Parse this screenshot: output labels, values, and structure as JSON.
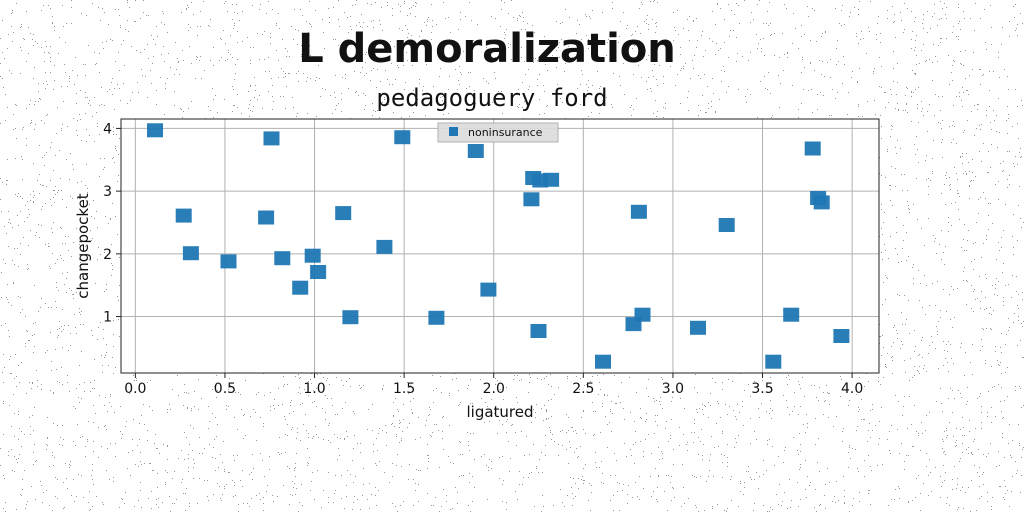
{
  "chart_data": {
    "type": "scatter",
    "title": "L demoralization",
    "subtitle": "pedagoguery ford",
    "xlabel": "ligatured",
    "ylabel": "changepocket",
    "xlim": [
      -0.08,
      4.15
    ],
    "ylim": [
      0.1,
      4.15
    ],
    "xticks": [
      0.0,
      0.5,
      1.0,
      1.5,
      2.0,
      2.5,
      3.0,
      3.5,
      4.0
    ],
    "xtick_labels": [
      "0.0",
      "0.5",
      "1.0",
      "1.5",
      "2.0",
      "2.5",
      "3.0",
      "3.5",
      "4.0"
    ],
    "yticks": [
      1,
      2,
      3,
      4
    ],
    "ytick_labels": [
      "1",
      "2",
      "3",
      "4"
    ],
    "grid": true,
    "legend_position": "top-center",
    "series": [
      {
        "name": "noninsurance",
        "color": "#1f77b4",
        "marker": "square",
        "points": [
          {
            "x": 0.11,
            "y": 3.97
          },
          {
            "x": 0.27,
            "y": 2.61
          },
          {
            "x": 0.31,
            "y": 2.01
          },
          {
            "x": 0.52,
            "y": 1.88
          },
          {
            "x": 0.73,
            "y": 2.58
          },
          {
            "x": 0.76,
            "y": 3.84
          },
          {
            "x": 0.82,
            "y": 1.93
          },
          {
            "x": 0.92,
            "y": 1.46
          },
          {
            "x": 0.99,
            "y": 1.97
          },
          {
            "x": 1.02,
            "y": 1.71
          },
          {
            "x": 1.16,
            "y": 2.65
          },
          {
            "x": 1.2,
            "y": 0.99
          },
          {
            "x": 1.39,
            "y": 2.11
          },
          {
            "x": 1.49,
            "y": 3.86
          },
          {
            "x": 1.68,
            "y": 0.98
          },
          {
            "x": 1.9,
            "y": 3.64
          },
          {
            "x": 1.97,
            "y": 1.43
          },
          {
            "x": 2.21,
            "y": 2.87
          },
          {
            "x": 2.22,
            "y": 3.21
          },
          {
            "x": 2.26,
            "y": 3.17
          },
          {
            "x": 2.32,
            "y": 3.18
          },
          {
            "x": 2.25,
            "y": 0.77
          },
          {
            "x": 2.61,
            "y": 0.28
          },
          {
            "x": 2.78,
            "y": 0.88
          },
          {
            "x": 2.81,
            "y": 2.67
          },
          {
            "x": 2.83,
            "y": 1.03
          },
          {
            "x": 3.14,
            "y": 0.82
          },
          {
            "x": 3.3,
            "y": 2.46
          },
          {
            "x": 3.56,
            "y": 0.28
          },
          {
            "x": 3.66,
            "y": 1.03
          },
          {
            "x": 3.78,
            "y": 3.68
          },
          {
            "x": 3.81,
            "y": 2.89
          },
          {
            "x": 3.83,
            "y": 2.82
          },
          {
            "x": 3.94,
            "y": 0.69
          }
        ]
      }
    ]
  }
}
